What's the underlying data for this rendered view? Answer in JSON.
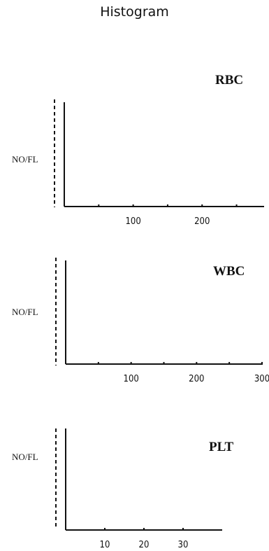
{
  "page": {
    "title": "Histogram"
  },
  "chart_data": [
    {
      "type": "bar",
      "title": "RBC",
      "ylabel": "NO/FL",
      "xlabel": "",
      "x_ticks": [
        50,
        100,
        150,
        200,
        250
      ],
      "x_tick_labels": [
        "",
        "100",
        "",
        "200",
        ""
      ],
      "xlim": [
        0,
        290
      ],
      "values": []
    },
    {
      "type": "bar",
      "title": "WBC",
      "ylabel": "NO/FL",
      "xlabel": "",
      "x_ticks": [
        50,
        100,
        150,
        200,
        250,
        300
      ],
      "x_tick_labels": [
        "",
        "100",
        "",
        "200",
        "",
        "300"
      ],
      "xlim": [
        0,
        300
      ],
      "values": []
    },
    {
      "type": "bar",
      "title": "PLT",
      "ylabel": "NO/FL",
      "xlabel": "",
      "x_ticks": [
        10,
        20,
        30
      ],
      "x_tick_labels": [
        "10",
        "20",
        "30"
      ],
      "xlim": [
        0,
        40
      ],
      "values": []
    }
  ]
}
